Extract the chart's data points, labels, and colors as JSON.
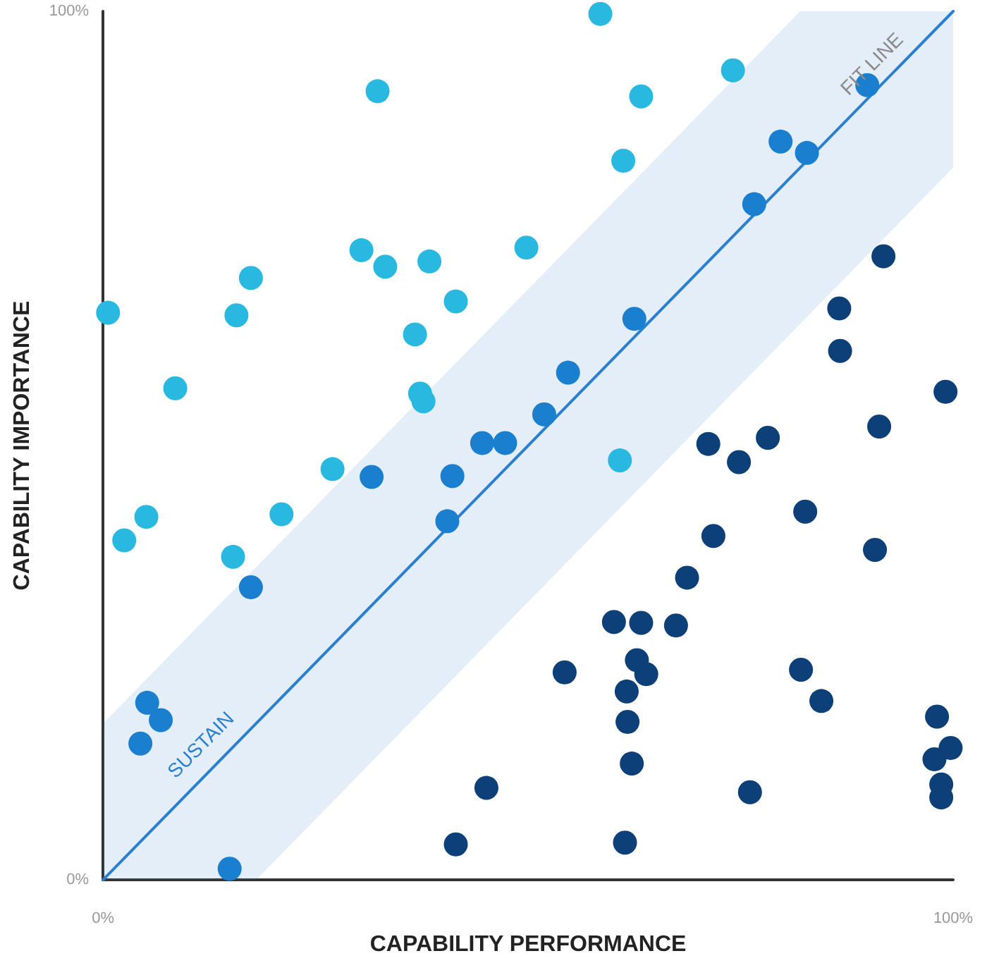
{
  "chart_data": {
    "type": "scatter",
    "xlabel": "CAPABILITY PERFORMANCE",
    "ylabel": "CAPABILITY IMPORTANCE",
    "xlim": [
      0,
      100
    ],
    "ylim": [
      0,
      100
    ],
    "xticks": [
      {
        "value": 0,
        "label": "0%"
      },
      {
        "value": 100,
        "label": "100%"
      }
    ],
    "yticks": [
      {
        "value": 0,
        "label": "0%"
      },
      {
        "value": 100,
        "label": "100%"
      }
    ],
    "grid": false,
    "marker": "circle",
    "series": [
      {
        "color": "#29b9e0",
        "x": [
          0.6,
          2.5,
          5.1,
          8.5,
          15.7,
          17.4,
          15.3,
          21,
          27,
          30.4,
          32.3,
          33.2,
          36.7,
          37.3,
          37.7,
          38.4,
          41.5,
          49.8,
          58.5,
          61.2,
          63.3,
          74.1,
          60.8
        ],
        "values": [
          65.3,
          39.1,
          41.8,
          56.6,
          65,
          69.3,
          37.2,
          42.1,
          47.3,
          72.5,
          90.8,
          70.6,
          62.8,
          56,
          55.1,
          71.2,
          66.6,
          72.8,
          99.7,
          82.8,
          90.2,
          93.2,
          48.3
        ]
      },
      {
        "color": "#1a7fcf",
        "x": [
          5.2,
          6.8,
          4.4,
          14.9,
          17.4,
          31.6,
          41.1,
          40.5,
          44.6,
          47.3,
          51.9,
          54.7,
          62.5,
          76.6,
          79.7,
          82.8,
          89.9
        ],
        "values": [
          20.4,
          18.4,
          15.7,
          1.3,
          33.7,
          46.4,
          46.5,
          41.3,
          50.3,
          50.3,
          53.6,
          58.4,
          64.6,
          77.8,
          85,
          83.7,
          91.5
        ]
      },
      {
        "color": "#0d3f78",
        "x": [
          91.8,
          86.6,
          86.7,
          99.1,
          91.3,
          71.2,
          78.2,
          74.8,
          82.6,
          71.8,
          90.8,
          68.7,
          60.1,
          63.3,
          67.4,
          62.8,
          63.9,
          54.3,
          61.6,
          61.7,
          62.2,
          82.1,
          84.5,
          98.1,
          99.7,
          97.8,
          98.6,
          98.6,
          76.1,
          45.1,
          41.5,
          61.4
        ],
        "values": [
          71.8,
          65.8,
          60.9,
          56.2,
          52.2,
          50.2,
          50.9,
          48.1,
          42.4,
          39.6,
          38,
          34.8,
          29.7,
          29.6,
          29.3,
          25.3,
          23.7,
          23.9,
          21.7,
          18.2,
          13.4,
          24.2,
          20.6,
          18.8,
          15.2,
          13.9,
          11,
          9.5,
          10.1,
          10.6,
          4.1,
          4.3
        ]
      },
      {
        "type": "line",
        "color": "#2a7fd0",
        "marker": "none",
        "line_style": "solid",
        "x": [
          0,
          18,
          82,
          100
        ],
        "values": [
          0,
          18,
          82,
          100
        ],
        "lower": [
          0,
          0,
          64,
          82
        ],
        "upper": [
          18,
          36,
          100,
          100
        ]
      }
    ],
    "annotations": [
      "FIT LINE",
      "SUSTAIN"
    ]
  }
}
